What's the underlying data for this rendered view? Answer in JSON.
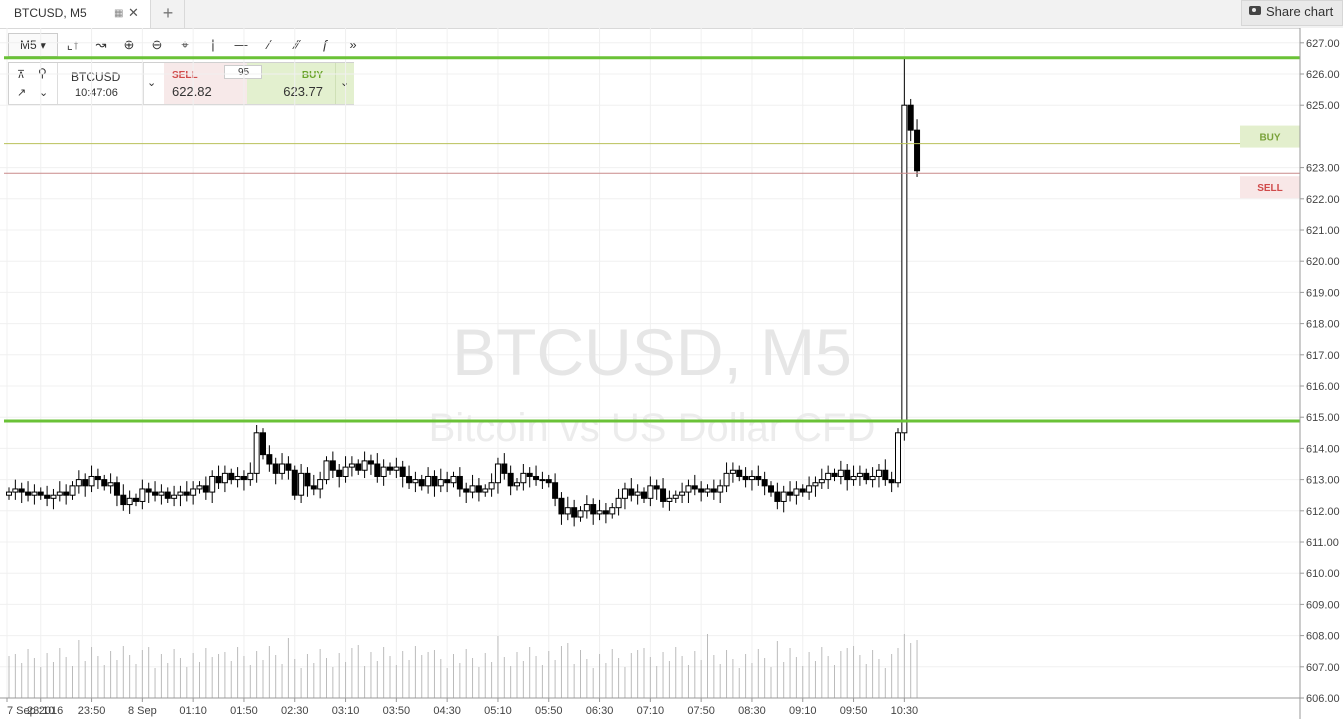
{
  "tab": {
    "title": "BTCUSD, M5",
    "plus": "+"
  },
  "share": {
    "label": "Share chart"
  },
  "toolbar": {
    "timeframe": "M5"
  },
  "trade_panel": {
    "symbol": "BTCUSD",
    "time": "10:47:06",
    "sell_label": "SELL",
    "sell_price": "622.82",
    "buy_label": "BUY",
    "buy_price": "623.77",
    "quantity": "95"
  },
  "watermark": {
    "symbol": "BTCUSD, M5",
    "description": "Bitcoin vs US Dollar CFD"
  },
  "colors": {
    "level_line": "#6ac237",
    "buy_tag": "#8bb84a",
    "sell_tag": "#d94e4e",
    "buy_zone": "#e3efcd",
    "sell_zone": "#f8e7e7"
  },
  "chart_data": {
    "type": "candlestick",
    "symbol": "BTCUSD",
    "timeframe": "M5",
    "ylim": [
      606,
      627.5
    ],
    "y_ticks": [
      "606.00",
      "607.00",
      "608.00",
      "609.00",
      "610.00",
      "611.00",
      "612.00",
      "613.00",
      "614.00",
      "615.00",
      "616.00",
      "617.00",
      "618.00",
      "619.00",
      "620.00",
      "621.00",
      "622.00",
      "623.00",
      "625.00",
      "626.00",
      "627.00"
    ],
    "x_tick_labels": [
      "7 Sep 2016",
      "23:10",
      "23:50",
      "8 Sep",
      "01:10",
      "01:50",
      "02:30",
      "03:10",
      "03:50",
      "04:30",
      "05:10",
      "05:50",
      "06:30",
      "07:10",
      "07:50",
      "08:30",
      "09:10",
      "09:50",
      "10:30"
    ],
    "horizontal_levels": [
      {
        "price": 626.52,
        "label": "626.52",
        "role": "resistance"
      },
      {
        "price": 614.88,
        "label": "614.88",
        "role": "support"
      }
    ],
    "price_lines": [
      {
        "price": 623.77,
        "label": "623.77",
        "tag": "BUY"
      },
      {
        "price": 622.82,
        "label": "622.82",
        "tag": "SELL"
      }
    ],
    "closes": [
      612.6,
      612.7,
      612.6,
      612.5,
      612.6,
      612.5,
      612.4,
      612.5,
      612.6,
      612.5,
      612.8,
      613,
      612.8,
      613.1,
      613,
      612.8,
      612.9,
      612.5,
      612.2,
      612.4,
      612.3,
      612.7,
      612.6,
      612.5,
      612.6,
      612.4,
      612.5,
      612.6,
      612.5,
      612.7,
      612.8,
      612.6,
      613.1,
      612.9,
      613.2,
      613,
      613.1,
      613,
      613.2,
      614.5,
      613.8,
      613.5,
      613.2,
      613.5,
      613.3,
      612.5,
      613.2,
      612.8,
      612.7,
      613.0,
      613.6,
      613.3,
      613.1,
      613.4,
      613.5,
      613.3,
      613.6,
      613.5,
      613.1,
      613.4,
      613.3,
      613.4,
      613.1,
      612.9,
      613.0,
      612.8,
      613.1,
      612.8,
      613.0,
      612.9,
      613.1,
      612.7,
      612.6,
      612.8,
      612.6,
      612.7,
      612.9,
      613.5,
      613.2,
      612.8,
      612.9,
      613.2,
      613.1,
      613.0,
      613.0,
      612.9,
      612.4,
      611.9,
      612.1,
      611.8,
      612.0,
      612.2,
      611.9,
      612.0,
      611.9,
      612.1,
      612.4,
      612.7,
      612.5,
      612.6,
      612.4,
      612.8,
      612.7,
      612.3,
      612.4,
      612.5,
      612.6,
      612.8,
      612.7,
      612.6,
      612.7,
      612.6,
      612.8,
      613.2,
      613.3,
      613.1,
      613.0,
      613.1,
      613.0,
      612.8,
      612.6,
      612.3,
      612.6,
      612.5,
      612.7,
      612.6,
      612.8,
      612.9,
      613.0,
      613.2,
      613.1,
      613.3,
      613.0,
      613.1,
      613.2,
      613.0,
      613.1,
      613.3,
      613.0,
      612.9,
      614.5,
      625.0,
      624.2,
      622.9
    ]
  }
}
